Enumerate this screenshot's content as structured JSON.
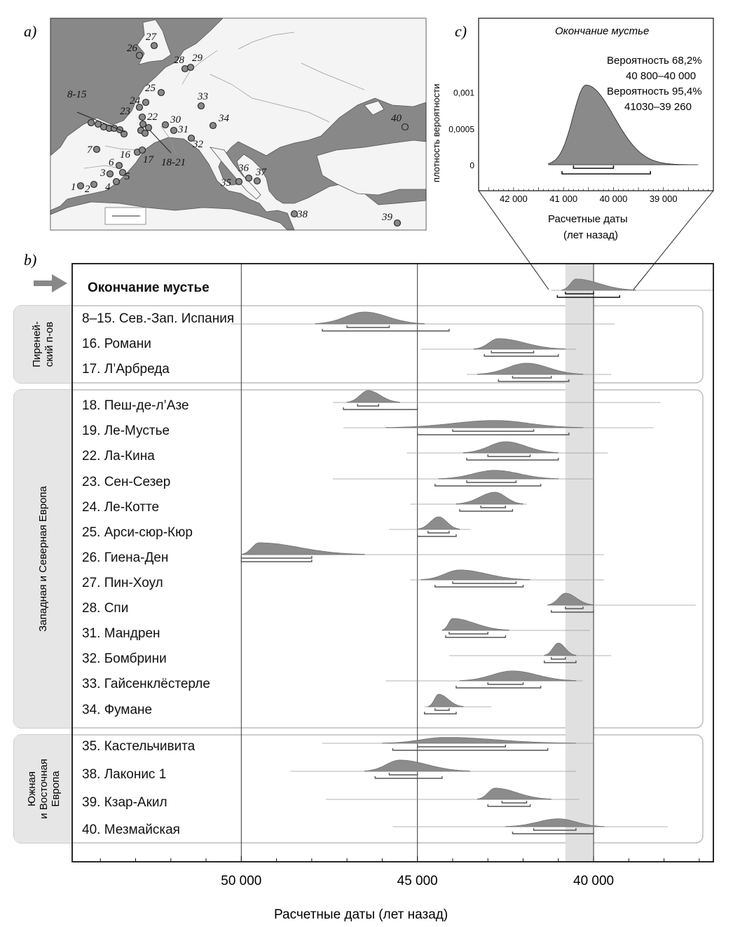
{
  "panel_labels": {
    "a": "a)",
    "b": "b)",
    "c": "c)"
  },
  "map": {
    "site_labels": [
      {
        "text": "1"
      },
      {
        "text": "2"
      },
      {
        "text": "3"
      },
      {
        "text": "4"
      },
      {
        "text": "5"
      },
      {
        "text": "6"
      },
      {
        "text": "7"
      },
      {
        "text": "8-15"
      },
      {
        "text": "16"
      },
      {
        "text": "17"
      },
      {
        "text": "18-21"
      },
      {
        "text": "22"
      },
      {
        "text": "23"
      },
      {
        "text": "24"
      },
      {
        "text": "25"
      },
      {
        "text": "26"
      },
      {
        "text": "27"
      },
      {
        "text": "28"
      },
      {
        "text": "29"
      },
      {
        "text": "30"
      },
      {
        "text": "31"
      },
      {
        "text": "32"
      },
      {
        "text": "33"
      },
      {
        "text": "34"
      },
      {
        "text": "35"
      },
      {
        "text": "36"
      },
      {
        "text": "37"
      },
      {
        "text": "38"
      },
      {
        "text": "39"
      },
      {
        "text": "40"
      }
    ]
  },
  "inset": {
    "title": "Окончание мустье",
    "prob68_label": "Вероятность 68,2%",
    "prob68_range": "40 800–40 000",
    "prob95_label": "Вероятность 95,4%",
    "prob95_range": "41030–39 260",
    "ylabel": "плотность вероятности",
    "xlabel_line1": "Расчетные даты",
    "xlabel_line2": "(лет назад)"
  },
  "chart_data": [
    {
      "type": "area",
      "title": "Окончание мустье",
      "xlabel": "Расчетные даты (лет назад)",
      "ylabel": "плотность вероятности",
      "xlim": [
        42700,
        38000
      ],
      "ylim": [
        0,
        0.0015
      ],
      "x_ticks": [
        "42 000",
        "41 000",
        "40 000",
        "39 000"
      ],
      "y_ticks": [
        "0,001",
        "0,0005",
        "0"
      ],
      "peak": 40550,
      "peak_density": 0.0011,
      "ranges": [
        {
          "probability": "68,2%",
          "from": 40800,
          "to": 40000
        },
        {
          "probability": "95,4%",
          "from": 41030,
          "to": 39260
        }
      ]
    },
    {
      "type": "area",
      "xlabel": "Расчетные даты (лет назад)",
      "xlim": [
        54800,
        36600
      ],
      "x_ticks": [
        "50 000",
        "45 000",
        "40 000"
      ],
      "highlight_band": [
        40800,
        40000
      ],
      "groups": [
        {
          "label": "Пиреней-\nский п-ов"
        },
        {
          "label": "Западная и Северная Европа"
        },
        {
          "label": "Южная\nи Восточная\nЕвропа"
        }
      ],
      "rows": [
        {
          "label": "Окончание мустье",
          "group": "",
          "peak": 40500,
          "left": 40900,
          "right": 38800,
          "height": 0.85,
          "tail": [
            41200,
            36600
          ],
          "r68": [
            40800,
            40000
          ],
          "r95": [
            41030,
            39260
          ]
        },
        {
          "label": "8–15. Сев.-Зап. Испания",
          "group": "Пиреней-ский п-ов",
          "peak": 46500,
          "left": 47900,
          "right": 44800,
          "height": 0.9,
          "tail": [
            50300,
            39400
          ],
          "r68": [
            47000,
            45800
          ],
          "r95": [
            47700,
            44100
          ]
        },
        {
          "label": "16. Романи",
          "group": "Пиреней-ский п-ов",
          "peak": 42700,
          "left": 43400,
          "right": 40800,
          "height": 0.8,
          "tail": [
            44900,
            40500
          ],
          "r68": [
            42900,
            41700
          ],
          "r95": [
            43100,
            41000
          ]
        },
        {
          "label": "17. Л’Арбреда",
          "group": "Пиреней-ский п-ов",
          "peak": 41900,
          "left": 43300,
          "right": 40300,
          "height": 0.85,
          "tail": [
            43600,
            39500
          ],
          "r68": [
            42300,
            41200
          ],
          "r95": [
            42700,
            40700
          ]
        },
        {
          "label": "18. Пеш-де-л’Азе",
          "group": "Западная и Северная Европа",
          "peak": 46400,
          "left": 47000,
          "right": 45500,
          "height": 0.9,
          "tail": [
            47400,
            38100
          ],
          "r68": [
            46700,
            46100
          ],
          "r95": [
            47100,
            45000
          ]
        },
        {
          "label": "19. Ле-Мустье",
          "group": "Западная и Северная Европа",
          "peak": 42800,
          "left": 45900,
          "right": 40300,
          "height": 0.55,
          "tail": [
            47100,
            38300
          ],
          "r68": [
            44000,
            41700
          ],
          "r95": [
            45000,
            40700
          ]
        },
        {
          "label": "22. Ла-Кина",
          "group": "Западная и Северная Европа",
          "peak": 42500,
          "left": 43700,
          "right": 41000,
          "height": 0.85,
          "tail": [
            45300,
            39600
          ],
          "r68": [
            43000,
            41800
          ],
          "r95": [
            43600,
            41000
          ]
        },
        {
          "label": "23. Сен-Сезер",
          "group": "Западная и Северная Европа",
          "peak": 42800,
          "left": 44400,
          "right": 41000,
          "height": 0.65,
          "tail": [
            47400,
            40000
          ],
          "r68": [
            43600,
            42200
          ],
          "r95": [
            44500,
            41500
          ]
        },
        {
          "label": "24. Ле-Котте",
          "group": "Западная и Северная Европа",
          "peak": 42800,
          "left": 43900,
          "right": 42000,
          "height": 0.9,
          "tail": [
            45200,
            41900
          ],
          "r68": [
            43200,
            42500
          ],
          "r95": [
            43800,
            42300
          ]
        },
        {
          "label": "25. Арси-сюр-Кюр",
          "group": "Западная и Северная Европа",
          "peak": 44400,
          "left": 45000,
          "right": 43800,
          "height": 0.95,
          "tail": [
            45800,
            43500
          ],
          "r68": [
            44700,
            44100
          ],
          "r95": [
            45000,
            43900
          ]
        },
        {
          "label": "26. Гиена-Ден",
          "group": "Западная и Северная Европа",
          "peak": 49500,
          "left": 50000,
          "right": 46500,
          "height": 0.9,
          "tail": [
            50000,
            39700
          ],
          "r68": [
            50000,
            48000
          ],
          "r95": [
            50000,
            48000
          ]
        },
        {
          "label": "27. Пин-Хоул",
          "group": "Западная и Северная Европа",
          "peak": 43800,
          "left": 44900,
          "right": 41800,
          "height": 0.75,
          "tail": [
            45200,
            39700
          ],
          "r68": [
            44000,
            42200
          ],
          "r95": [
            44500,
            42000
          ]
        },
        {
          "label": "28. Спи",
          "group": "Западная и Северная Европа",
          "peak": 40800,
          "left": 41300,
          "right": 40000,
          "height": 0.9,
          "tail": [
            41300,
            37100
          ],
          "r68": [
            40800,
            40300
          ],
          "r95": [
            41200,
            40000
          ]
        },
        {
          "label": "31. Мандрен",
          "group": "Западная и Северная Европа",
          "peak": 44000,
          "left": 44300,
          "right": 42400,
          "height": 0.9,
          "tail": [
            44300,
            40100
          ],
          "r68": [
            44100,
            43000
          ],
          "r95": [
            44200,
            42500
          ]
        },
        {
          "label": "32. Бомбрини",
          "group": "Западная и Северная Европа",
          "peak": 41000,
          "left": 41400,
          "right": 40500,
          "height": 0.95,
          "tail": [
            44100,
            39500
          ],
          "r68": [
            41200,
            40800
          ],
          "r95": [
            41400,
            40500
          ]
        },
        {
          "label": "33. Гайсенклёстерле",
          "group": "Западная и Северная Европа",
          "peak": 42300,
          "left": 43800,
          "right": 40500,
          "height": 0.75,
          "tail": [
            45900,
            40300
          ],
          "r68": [
            43000,
            42000
          ],
          "r95": [
            43900,
            41500
          ]
        },
        {
          "label": "34. Фумане",
          "group": "Западная и Северная Европа",
          "peak": 44400,
          "left": 44700,
          "right": 43700,
          "height": 0.95,
          "tail": [
            44800,
            42900
          ],
          "r68": [
            44500,
            44100
          ],
          "r95": [
            44800,
            43900
          ]
        },
        {
          "label": "35. Кастельчивита",
          "group": "Южная и Восточная Европа",
          "peak": 44200,
          "left": 46000,
          "right": 40500,
          "height": 0.45,
          "tail": [
            47700,
            40000
          ],
          "r68": [
            45000,
            42500
          ],
          "r95": [
            45700,
            41300
          ]
        },
        {
          "label": "38. Лаконис 1",
          "group": "Южная и Восточная Европа",
          "peak": 45500,
          "left": 46500,
          "right": 43500,
          "height": 0.85,
          "tail": [
            48600,
            40500
          ],
          "r68": [
            45800,
            45000
          ],
          "r95": [
            46200,
            44300
          ]
        },
        {
          "label": "39. Кзар-Акил",
          "group": "Южная и Восточная Европа",
          "peak": 42800,
          "left": 43300,
          "right": 41200,
          "height": 0.85,
          "tail": [
            47600,
            40400
          ],
          "r68": [
            42600,
            41900
          ],
          "r95": [
            43000,
            41800
          ]
        },
        {
          "label": "40. Мезмайская",
          "group": "Южная и Восточная Европа",
          "peak": 41000,
          "left": 42500,
          "right": 39700,
          "height": 0.6,
          "tail": [
            45700,
            37900
          ],
          "r68": [
            41700,
            40500
          ],
          "r95": [
            42300,
            40000
          ]
        }
      ]
    }
  ]
}
